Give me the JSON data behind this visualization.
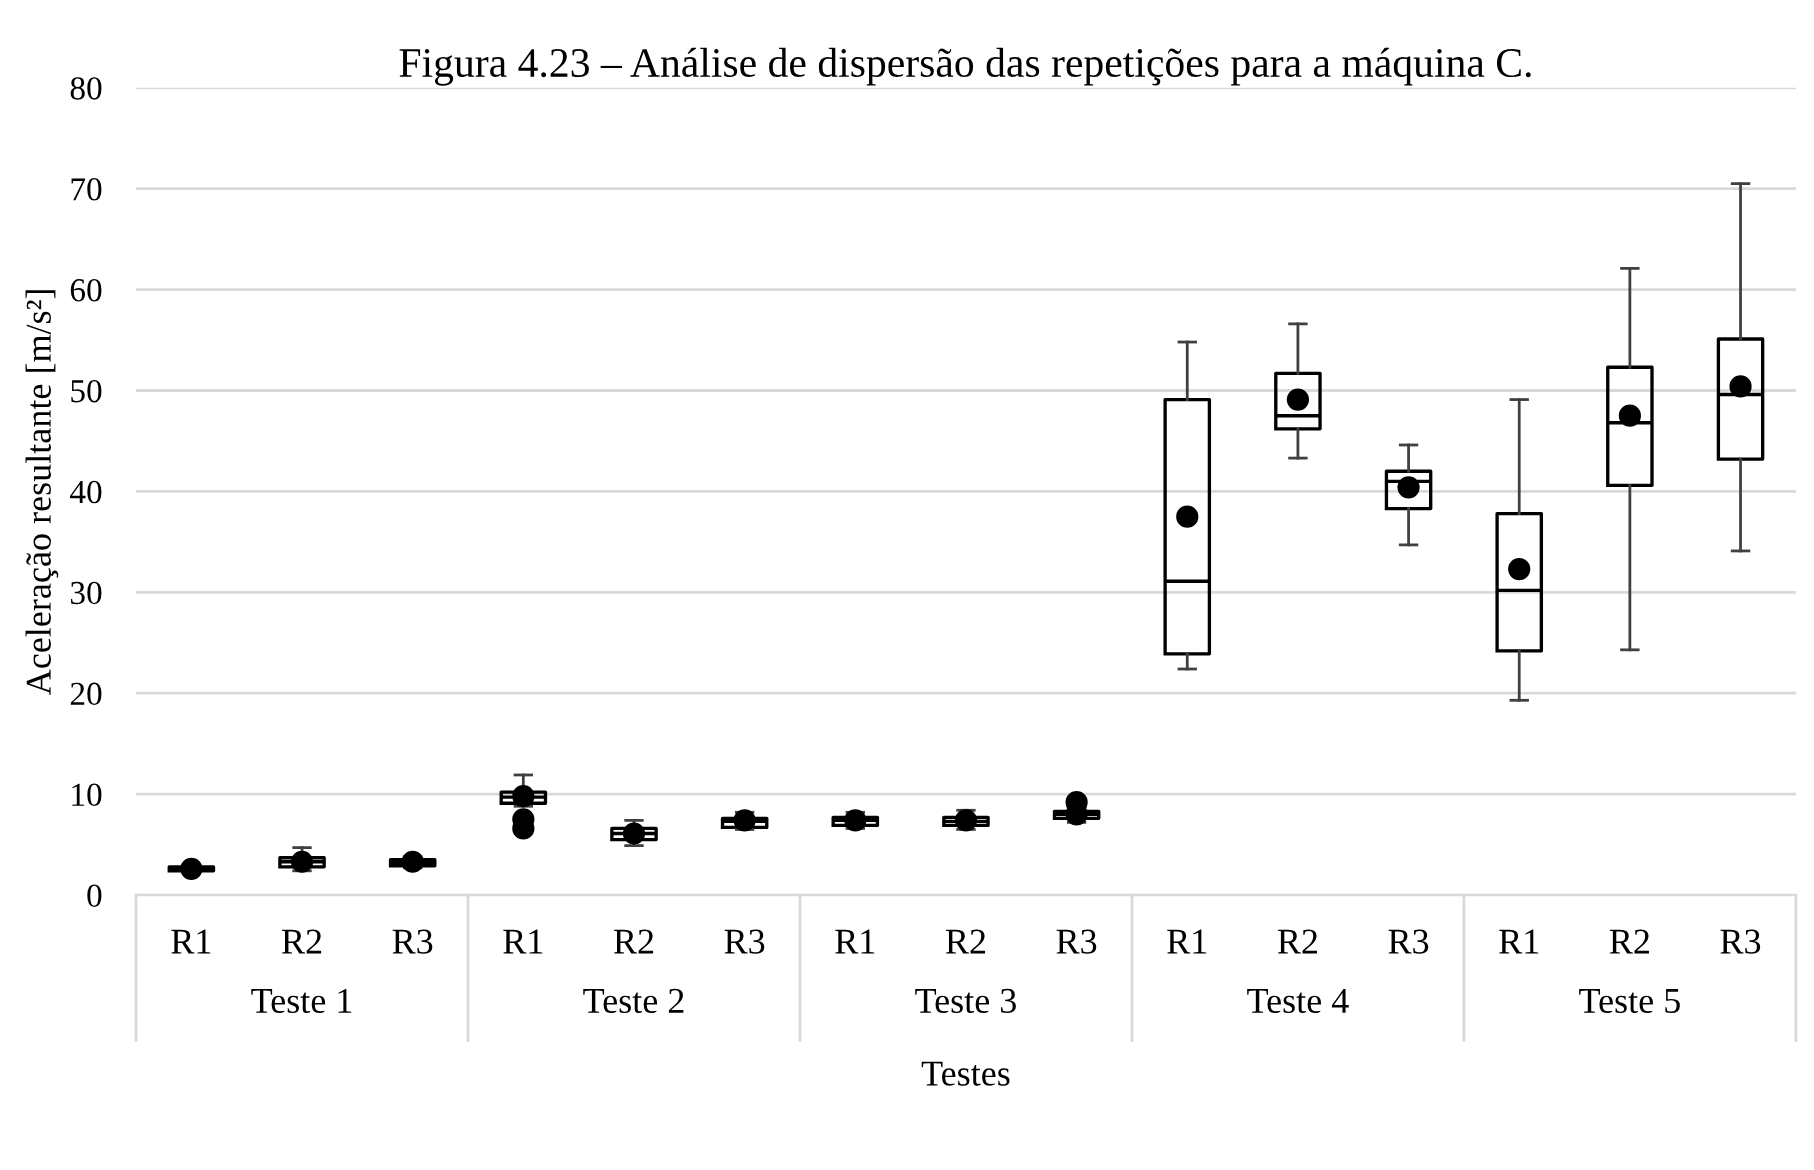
{
  "chart_data": {
    "type": "box",
    "title": "Figura 4.23 – Análise de dispersão das repetições para a máquina C.",
    "xlabel": "Testes",
    "ylabel": "Aceleração resultante [m/s²]",
    "categories": [
      "R1",
      "R2",
      "R3",
      "R1",
      "R2",
      "R3",
      "R1",
      "R2",
      "R3",
      "R1",
      "R2",
      "R3",
      "R1",
      "R2",
      "R3"
    ],
    "annotations": [
      "Teste 1",
      "Teste 2",
      "Teste 3",
      "Teste 4",
      "Teste 5"
    ],
    "boxes": [
      {
        "low": 2.3,
        "q1": 2.4,
        "median": 2.6,
        "q3": 2.8,
        "high": 2.9,
        "mean": 2.6
      },
      {
        "low": 2.4,
        "q1": 2.8,
        "median": 3.3,
        "q3": 3.7,
        "high": 4.7,
        "mean": 3.3
      },
      {
        "low": 2.7,
        "q1": 2.9,
        "median": 3.2,
        "q3": 3.5,
        "high": 3.8,
        "mean": 3.3
      },
      {
        "low": 8.8,
        "q1": 9.1,
        "median": 9.7,
        "q3": 10.2,
        "high": 11.9,
        "mean": 9.8,
        "outliers": [
          7.5,
          6.6
        ]
      },
      {
        "low": 4.9,
        "q1": 5.5,
        "median": 6.1,
        "q3": 6.6,
        "high": 7.4,
        "mean": 6.1
      },
      {
        "low": 6.5,
        "q1": 6.7,
        "median": 7.3,
        "q3": 7.6,
        "high": 8.2,
        "mean": 7.4
      },
      {
        "low": 6.6,
        "q1": 6.9,
        "median": 7.4,
        "q3": 7.7,
        "high": 8.2,
        "mean": 7.4
      },
      {
        "low": 6.5,
        "q1": 6.9,
        "median": 7.3,
        "q3": 7.7,
        "high": 8.4,
        "mean": 7.4
      },
      {
        "low": 7.2,
        "q1": 7.6,
        "median": 8.0,
        "q3": 8.3,
        "high": 8.6,
        "mean": 8.0,
        "outliers": [
          9.2
        ]
      },
      {
        "low": 22.4,
        "q1": 23.9,
        "median": 31.1,
        "q3": 49.1,
        "high": 54.8,
        "mean": 37.5
      },
      {
        "low": 43.3,
        "q1": 46.2,
        "median": 47.5,
        "q3": 51.7,
        "high": 56.6,
        "mean": 49.1
      },
      {
        "low": 34.7,
        "q1": 38.3,
        "median": 41.0,
        "q3": 42.0,
        "high": 44.6,
        "mean": 40.4
      },
      {
        "low": 19.3,
        "q1": 24.2,
        "median": 30.2,
        "q3": 37.8,
        "high": 49.1,
        "mean": 32.3
      },
      {
        "low": 24.3,
        "q1": 40.6,
        "median": 46.8,
        "q3": 52.3,
        "high": 62.1,
        "mean": 47.5
      },
      {
        "low": 34.1,
        "q1": 43.2,
        "median": 49.6,
        "q3": 55.1,
        "high": 70.5,
        "mean": 50.4
      }
    ],
    "color": "#000000",
    "ylim": [
      0,
      80
    ],
    "yticks": [
      0,
      10,
      20,
      30,
      40,
      50,
      60,
      70,
      80
    ],
    "grid": "y",
    "marker": "circle"
  }
}
